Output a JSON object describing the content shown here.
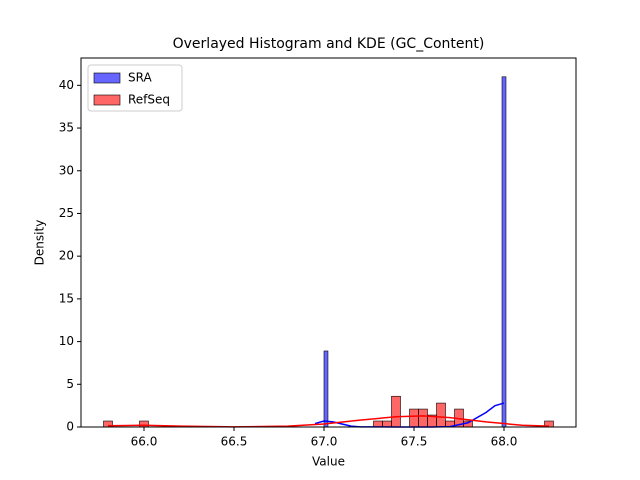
{
  "chart_data": {
    "type": "histogram",
    "title": "Overlayed Histogram and KDE (GC_Content)",
    "xlabel": "Value",
    "ylabel": "Density",
    "xlim": [
      65.65,
      68.4
    ],
    "ylim": [
      0,
      43.2
    ],
    "xticks": [
      {
        "value": 66,
        "label": "66.0"
      },
      {
        "value": 66.5,
        "label": "66.5"
      },
      {
        "value": 67,
        "label": "67.0"
      },
      {
        "value": 67.5,
        "label": "67.5"
      },
      {
        "value": 68,
        "label": "68.0"
      }
    ],
    "yticks": [
      0,
      5,
      10,
      15,
      20,
      25,
      30,
      35,
      40
    ],
    "legend": "upper left",
    "series": [
      {
        "name": "SRA",
        "color": "#0000ff",
        "bins": [
          67.0,
          67.022,
          67.989,
          68.011
        ],
        "values": [
          8.9,
          0,
          41
        ],
        "kde": {
          "x": [
            66.95,
            67.0,
            67.05,
            67.1,
            67.15,
            67.2,
            67.4,
            67.6,
            67.7,
            67.8,
            67.9,
            67.95,
            68.0
          ],
          "values": [
            0.4,
            0.7,
            0.6,
            0.35,
            0.1,
            0.02,
            0,
            0,
            0.05,
            0.5,
            1.7,
            2.5,
            2.8
          ]
        }
      },
      {
        "name": "RefSeq",
        "color": "#ff0000",
        "bins": [
          65.775,
          65.825,
          65.875,
          65.925,
          65.975,
          66.025,
          66.075,
          66.125,
          66.175,
          66.225,
          66.275,
          66.325,
          66.375,
          66.425,
          66.475,
          66.525,
          66.575,
          66.625,
          66.675,
          66.725,
          66.775,
          66.825,
          66.875,
          66.925,
          66.975,
          67.025,
          67.075,
          67.125,
          67.175,
          67.225,
          67.275,
          67.325,
          67.375,
          67.425,
          67.475,
          67.525,
          67.575,
          67.625,
          67.675,
          67.725,
          67.775,
          67.825,
          67.875,
          67.925,
          67.975,
          68.025,
          68.075,
          68.125,
          68.175,
          68.225,
          68.275
        ],
        "values": [
          0.7,
          0,
          0,
          0,
          0.7,
          0,
          0,
          0,
          0,
          0,
          0,
          0,
          0,
          0,
          0,
          0,
          0,
          0,
          0,
          0,
          0,
          0,
          0,
          0,
          0,
          0,
          0,
          0,
          0,
          0,
          0.7,
          0.7,
          3.6,
          0,
          2.1,
          2.1,
          1.4,
          2.8,
          0.7,
          2.1,
          0.7,
          0,
          0,
          0,
          0,
          0,
          0,
          0,
          0,
          0.7
        ],
        "kde": {
          "x": [
            65.8,
            66.0,
            66.2,
            66.5,
            66.8,
            67.0,
            67.2,
            67.4,
            67.55,
            67.7,
            67.9,
            68.1,
            68.25
          ],
          "values": [
            0.15,
            0.2,
            0.1,
            0.02,
            0.1,
            0.35,
            0.8,
            1.2,
            1.3,
            1.1,
            0.6,
            0.2,
            0.1
          ]
        }
      }
    ]
  }
}
